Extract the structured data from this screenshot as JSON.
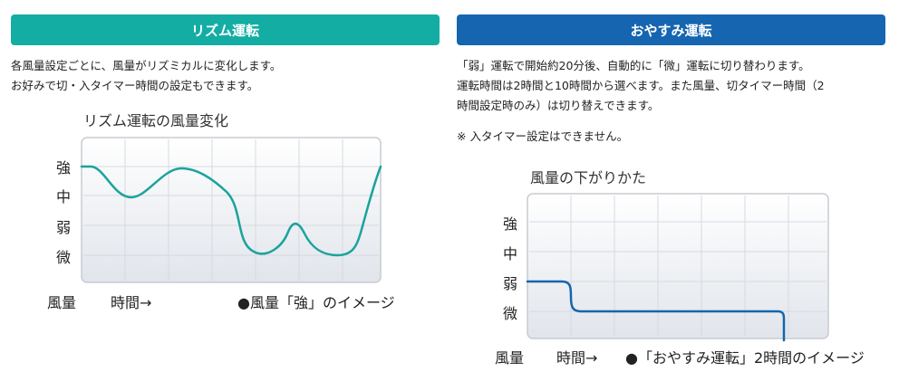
{
  "rhythm": {
    "header": "リズム運転",
    "desc": [
      "各風量設定ごとに、風量がリズミカルに変化します。",
      "お好みで切・入タイマー時間の設定もできます。"
    ],
    "chart_title": "リズム運転の風量変化",
    "levels": [
      "強",
      "中",
      "弱",
      "微"
    ],
    "y_axis_label": "風量",
    "x_axis_label": "時間→",
    "caption": "●風量「強」のイメージ"
  },
  "sleep": {
    "header": "おやすみ運転",
    "desc": [
      "「弱」運転で開始約20分後、自動的に「微」運転に切り替わります。",
      "運転時間は2時間と10時間から選べます。また風量、切タイマー時間（2",
      "時間設定時のみ）は切り替えできます。"
    ],
    "note": "※ 入タイマー設定はできません。",
    "chart_title": "風量の下がりかた",
    "levels": [
      "強",
      "中",
      "弱",
      "微"
    ],
    "y_axis_label": "風量",
    "x_axis_label": "時間→",
    "caption": "●「おやすみ運転」2時間のイメージ"
  },
  "colors": {
    "teal": "#13ada4",
    "blue": "#1565b0",
    "curve": "#1aa39c",
    "grid": "#d8dce2",
    "plot_bg_top": "#ffffff",
    "plot_bg_bottom": "#e3e7ed"
  }
}
